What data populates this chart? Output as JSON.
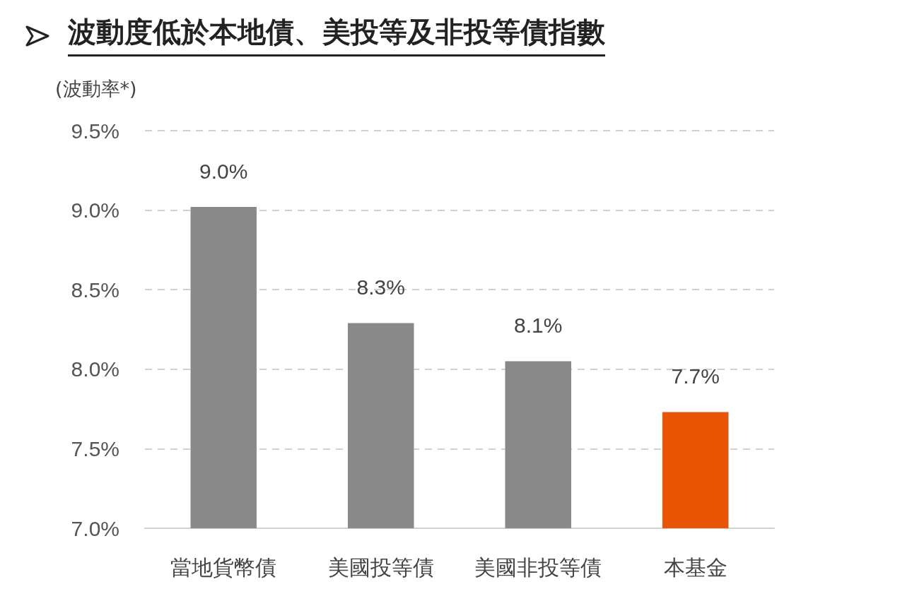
{
  "chart_data": {
    "type": "bar",
    "title": "波動度低於本地債、美投等及非投等債指數",
    "ylabel": "(波動率*)",
    "categories": [
      "當地貨幣債",
      "美國投等債",
      "美國非投等債",
      "本基金"
    ],
    "values": [
      9.02,
      8.29,
      8.05,
      7.73
    ],
    "value_labels": [
      "9.0%",
      "8.3%",
      "8.1%",
      "7.7%"
    ],
    "colors": [
      "#898989",
      "#898989",
      "#898989",
      "#e95504"
    ],
    "ylim": [
      7.0,
      9.5
    ],
    "yticks": [
      {
        "value": 7.0,
        "label": "7.0%"
      },
      {
        "value": 7.5,
        "label": "7.5%"
      },
      {
        "value": 8.0,
        "label": "8.0%"
      },
      {
        "value": 8.5,
        "label": "8.5%"
      },
      {
        "value": 9.0,
        "label": "9.0%"
      },
      {
        "value": 9.5,
        "label": "9.5%"
      }
    ],
    "grid": "y"
  }
}
